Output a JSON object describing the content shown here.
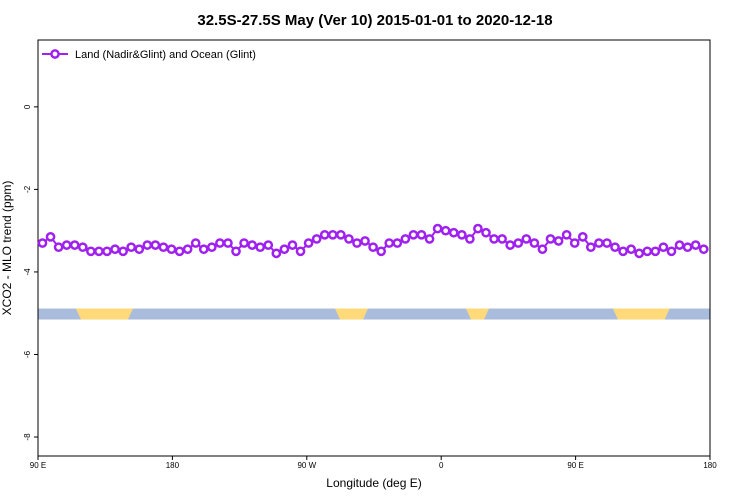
{
  "chart_data": {
    "type": "line",
    "title": "32.5S-27.5S May (Ver 10)   2015-01-01 to 2020-12-18",
    "x_label": "Longitude (deg E)",
    "y_label": "XCO2 - MLO trend (ppm)",
    "xlim": [
      90,
      540
    ],
    "ylim": [
      -8.46,
      1.62
    ],
    "xticks": [
      {
        "value": 90,
        "label": "90 E"
      },
      {
        "value": 180,
        "label": "180"
      },
      {
        "value": 270,
        "label": "90 W"
      },
      {
        "value": 360,
        "label": "0"
      },
      {
        "value": 450,
        "label": "90 E"
      },
      {
        "value": 540,
        "label": "180"
      }
    ],
    "yticks": [
      0,
      -2,
      -4,
      -6,
      -8
    ],
    "legend_position": "upper left",
    "mask_level": -5.02,
    "land_ranges": [
      [
        115.4,
        153.6
      ],
      [
        288.9,
        311
      ],
      [
        376.6,
        392
      ],
      [
        475,
        513
      ]
    ],
    "x": [
      93,
      98.4,
      103.8,
      109.2,
      114.6,
      120,
      125.4,
      130.8,
      136.2,
      141.6,
      147,
      152.4,
      157.8,
      163.2,
      168.6,
      174,
      179.4,
      184.8,
      190.2,
      195.6,
      201,
      206.4,
      211.8,
      217.2,
      222.6,
      228,
      233.4,
      238.8,
      244.2,
      249.6,
      255,
      260.4,
      265.8,
      271.2,
      276.6,
      282,
      287.4,
      292.8,
      298.2,
      303.6,
      309,
      314.4,
      319.8,
      325.2,
      330.6,
      336,
      341.4,
      346.8,
      352.2,
      357.6,
      363,
      368.4,
      373.8,
      379.2,
      384.6,
      390,
      395.4,
      400.8,
      406.2,
      411.6,
      417,
      422.4,
      427.8,
      433.2,
      438.6,
      444,
      449.4,
      454.8,
      460.2,
      465.6,
      471,
      476.4,
      481.8,
      487.2,
      492.6,
      498,
      503.4,
      508.8,
      514.2,
      519.6,
      525,
      530.4,
      535.8
    ],
    "series": [
      {
        "name": "Land (Nadir&Glint) and Ocean (Glint)",
        "color": "#a020f0",
        "values": [
          -3.3,
          -3.15,
          -3.4,
          -3.35,
          -3.35,
          -3.4,
          -3.5,
          -3.5,
          -3.5,
          -3.45,
          -3.5,
          -3.4,
          -3.45,
          -3.35,
          -3.35,
          -3.4,
          -3.45,
          -3.5,
          -3.45,
          -3.3,
          -3.45,
          -3.4,
          -3.3,
          -3.3,
          -3.5,
          -3.3,
          -3.35,
          -3.4,
          -3.35,
          -3.55,
          -3.45,
          -3.35,
          -3.5,
          -3.3,
          -3.2,
          -3.1,
          -3.1,
          -3.1,
          -3.2,
          -3.3,
          -3.25,
          -3.4,
          -3.5,
          -3.3,
          -3.3,
          -3.2,
          -3.1,
          -3.1,
          -3.2,
          -2.95,
          -3.0,
          -3.05,
          -3.1,
          -3.2,
          -2.95,
          -3.05,
          -3.2,
          -3.2,
          -3.35,
          -3.3,
          -3.2,
          -3.3,
          -3.45,
          -3.2,
          -3.25,
          -3.1,
          -3.3,
          -3.15,
          -3.4,
          -3.3,
          -3.3,
          -3.4,
          -3.5,
          -3.45,
          -3.55,
          -3.5,
          -3.5,
          -3.4,
          -3.5,
          -3.35,
          -3.4,
          -3.35,
          -3.45
        ]
      }
    ]
  }
}
